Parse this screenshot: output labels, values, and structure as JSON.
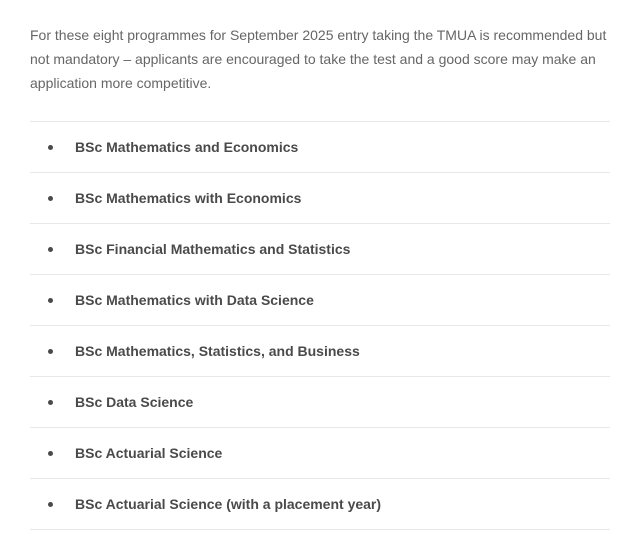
{
  "intro": "For these eight programmes for September 2025 entry taking the TMUA is recommended but not mandatory – applicants are encouraged to take the test and a good score may make an application more competitive.",
  "programmes": [
    "BSc Mathematics and Economics",
    "BSc Mathematics with Economics",
    "BSc Financial Mathematics and Statistics",
    "BSc Mathematics with Data Science",
    "BSc Mathematics, Statistics, and Business",
    "BSc Data Science",
    "BSc Actuarial Science",
    "BSc Actuarial Science (with a placement year)"
  ],
  "colors": {
    "text_primary": "#666666",
    "text_bold": "#4a4a4a",
    "border": "#e8e8e8",
    "background": "#ffffff"
  }
}
